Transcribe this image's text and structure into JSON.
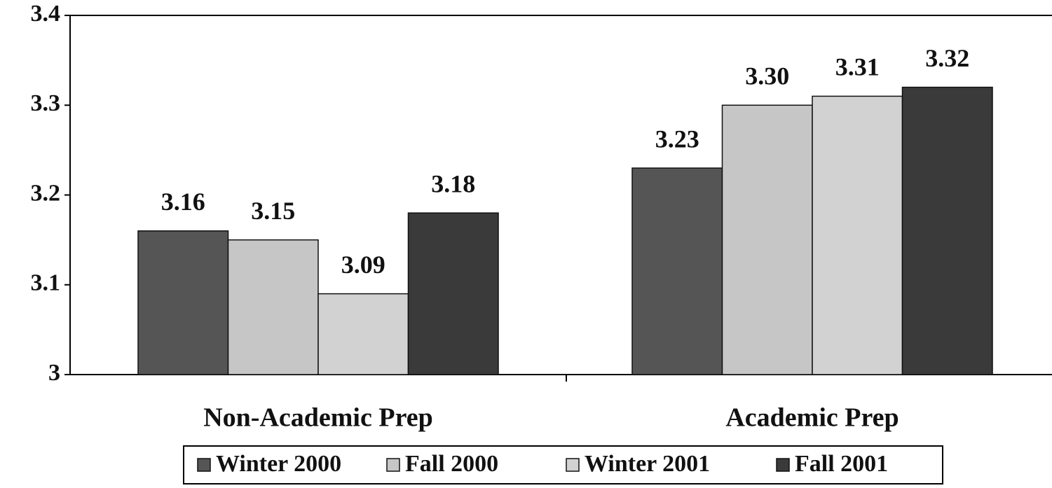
{
  "chart_data": {
    "type": "bar",
    "categories": [
      "Non-Academic Prep",
      "Academic Prep"
    ],
    "series": [
      {
        "name": "Winter 2000",
        "color": "#555555",
        "values": [
          3.16,
          3.23
        ],
        "value_labels": [
          "3.16",
          "3.23"
        ]
      },
      {
        "name": "Fall 2000",
        "color": "#c6c6c6",
        "values": [
          3.15,
          3.3
        ],
        "value_labels": [
          "3.15",
          "3.30"
        ]
      },
      {
        "name": "Winter 2001",
        "color": "#d2d2d2",
        "values": [
          3.09,
          3.31
        ],
        "value_labels": [
          "3.09",
          "3.31"
        ]
      },
      {
        "name": "Fall 2001",
        "color": "#3a3a3a",
        "values": [
          3.18,
          3.32
        ],
        "value_labels": [
          "3.18",
          "3.32"
        ]
      }
    ],
    "ylim": [
      3,
      3.4
    ],
    "yticks": [
      3,
      3.1,
      3.2,
      3.3,
      3.4
    ],
    "grid": false,
    "legend": "bottom"
  }
}
